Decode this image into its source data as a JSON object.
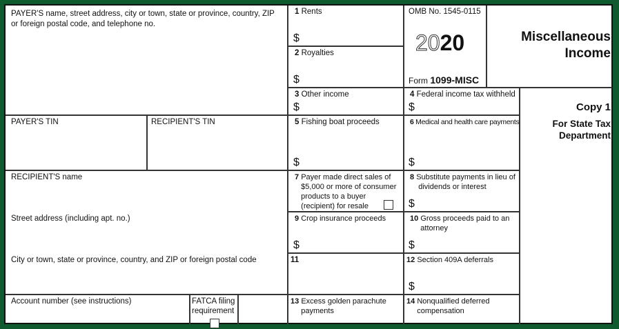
{
  "form": {
    "payer_info": "PAYER'S name, street address, city or town, state or province, country, ZIP",
    "payer_info_2": "or foreign postal code, and telephone no.",
    "payer_tin": "PAYER'S TIN",
    "recipient_tin": "RECIPIENT'S TIN",
    "recipient_name": "RECIPIENT'S name",
    "street": "Street address (including apt. no.)",
    "city": "City or town, state or province, country, and ZIP or foreign postal code",
    "account": "Account number (see instructions)",
    "fatca_1": "FATCA filing",
    "fatca_2": "requirement",
    "omb": "OMB No. 1545-0115",
    "year_outline": "20",
    "year_bold": "20",
    "form_word": "Form",
    "form_name": "1099-MISC",
    "title_1": "Miscellaneous",
    "title_2": "Income",
    "copy": "Copy 1",
    "copy_desc_1": "For State Tax",
    "copy_desc_2": "Department",
    "dollar": "$"
  },
  "boxes": [
    {
      "num": "1",
      "label": "Rents"
    },
    {
      "num": "2",
      "label": "Royalties"
    },
    {
      "num": "3",
      "label": "Other income"
    },
    {
      "num": "4",
      "label": "Federal income tax withheld"
    },
    {
      "num": "5",
      "label": "Fishing boat proceeds"
    },
    {
      "num": "6",
      "label": "Medical and health care payments"
    },
    {
      "num": "7",
      "label": "Payer made direct sales of",
      "label_2": "$5,000 or more of consumer",
      "label_3": "products to a buyer",
      "label_4": "(recipient) for resale"
    },
    {
      "num": "8",
      "label": "Substitute payments in lieu of",
      "label_2": "dividends or interest"
    },
    {
      "num": "9",
      "label": "Crop insurance proceeds"
    },
    {
      "num": "10",
      "label": "Gross proceeds paid to an",
      "label_2": "attorney"
    },
    {
      "num": "11",
      "label": ""
    },
    {
      "num": "12",
      "label": "Section 409A deferrals"
    },
    {
      "num": "13",
      "label": "Excess golden parachute",
      "label_2": "payments"
    },
    {
      "num": "14",
      "label": "Nonqualified deferred",
      "label_2": "compensation"
    }
  ]
}
